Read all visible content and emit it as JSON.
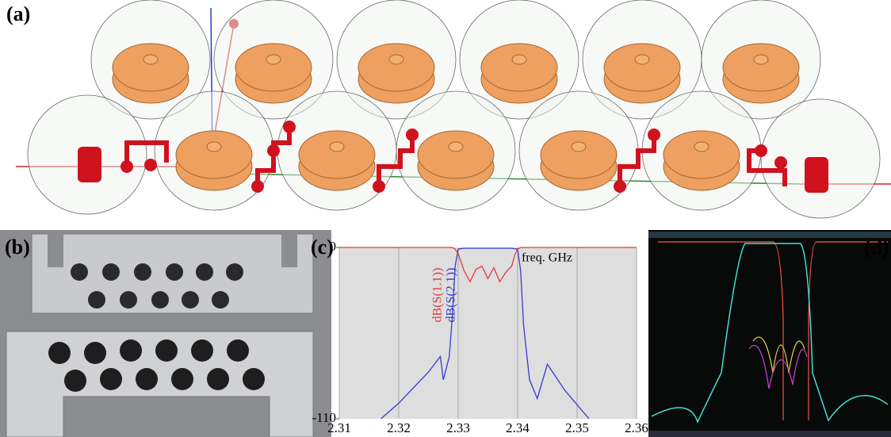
{
  "panel_labels": [
    "(a)",
    "(b)",
    "(c)",
    "(d)"
  ],
  "chart_data": {
    "type": "line",
    "x_label": "freq. GHz",
    "x": [
      2.31,
      2.317,
      2.32,
      2.325,
      2.327,
      2.3275,
      2.3285,
      2.329,
      2.3295,
      2.33,
      2.331,
      2.332,
      2.333,
      2.334,
      2.335,
      2.336,
      2.337,
      2.338,
      2.339,
      2.3395,
      2.34,
      2.3405,
      2.341,
      2.342,
      2.3433,
      2.345,
      2.348,
      2.352,
      2.36
    ],
    "series": [
      {
        "name": "dB(S(2.1))",
        "color": "#3a3ad0",
        "values": [
          null,
          -110,
          -100,
          -80,
          -70,
          -85,
          -70,
          -45,
          -12,
          -1,
          -0.5,
          -0.5,
          -0.5,
          -0.5,
          -0.5,
          -0.5,
          -0.5,
          -0.5,
          -0.5,
          -0.8,
          -1,
          -15,
          -50,
          -85,
          -97,
          -75,
          -92,
          -110,
          null
        ]
      },
      {
        "name": "dB(S(1.1))",
        "color": "#e03a3a",
        "values": [
          0,
          0,
          0,
          0,
          0,
          0,
          0,
          0,
          -1,
          -4,
          -15,
          -22,
          -14,
          -12,
          -20,
          -13,
          -22,
          -16,
          -12,
          -5,
          -1,
          0,
          0,
          0,
          0,
          0,
          0,
          0,
          0
        ]
      }
    ],
    "xlim": [
      2.31,
      2.36
    ],
    "xticks": [
      2.31,
      2.32,
      2.33,
      2.34,
      2.35,
      2.36
    ],
    "ylim": [
      -110,
      0
    ],
    "yticks": [
      -110,
      0
    ],
    "grid": true
  }
}
